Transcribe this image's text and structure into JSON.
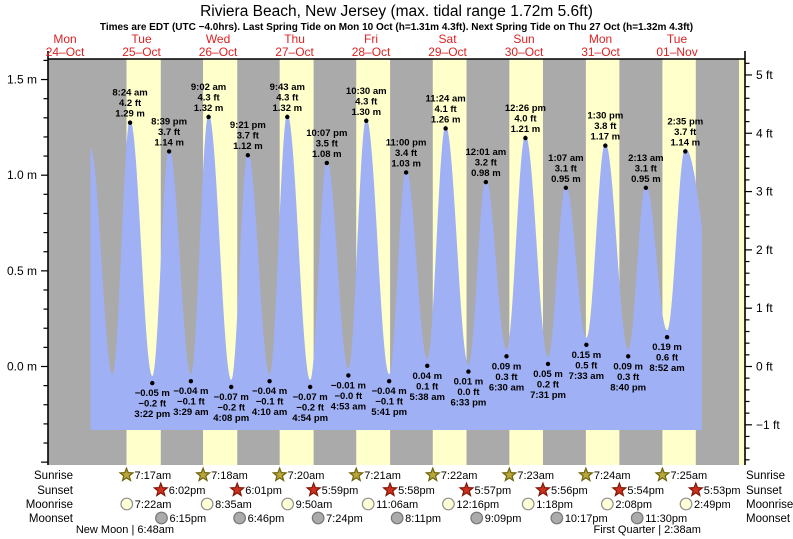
{
  "header": {
    "title": "Riviera Beach, New Jersey (max. tidal range 1.72m 5.6ft)",
    "subtitle": "Times are EDT (UTC −4.0hrs). Last Spring Tide on Mon 10 Oct (h=1.31m 4.3ft). Next Spring Tide on Thu 27 Oct (h=1.32m 4.3ft)"
  },
  "colors": {
    "background": "#ffffff",
    "night_band": "#aaaaaa",
    "daylight_band": "#ffffcc",
    "tide_fill": "#9fb0f5",
    "axis": "#000000",
    "date_red": "#dd2222",
    "annotation": "#000000",
    "sunrise_star": "#b9a73b",
    "sunrise_star_border": "#6f650f",
    "sunset_star": "#d03020",
    "sunset_star_border": "#801808",
    "moonrise_circle": "#ffffd8",
    "moonrise_circle_border": "#909090",
    "moonset_circle": "#ababab",
    "moonset_circle_border": "#777777"
  },
  "chart_data": {
    "type": "area",
    "title": "Riviera Beach, New Jersey tide curve",
    "ylabel_left": "m",
    "ylabel_right": "ft",
    "ylim_m": [
      -0.52,
      1.6
    ],
    "grid": false,
    "days": [
      {
        "day": "Mon",
        "date": "24–Oct"
      },
      {
        "day": "Tue",
        "date": "25–Oct"
      },
      {
        "day": "Wed",
        "date": "26–Oct"
      },
      {
        "day": "Thu",
        "date": "27–Oct"
      },
      {
        "day": "Fri",
        "date": "28–Oct"
      },
      {
        "day": "Sat",
        "date": "29–Oct"
      },
      {
        "day": "Sun",
        "date": "30–Oct"
      },
      {
        "day": "Mon",
        "date": "31–Oct"
      },
      {
        "day": "Tue",
        "date": "01–Nov"
      }
    ],
    "left_ticks": [
      {
        "label": "1.5 m",
        "v": 1.5
      },
      {
        "label": "1.0 m",
        "v": 1.0
      },
      {
        "label": "0.5 m",
        "v": 0.5
      },
      {
        "label": "0.0 m",
        "v": 0.0
      }
    ],
    "right_ticks": [
      {
        "label": "5 ft",
        "v": 5
      },
      {
        "label": "4 ft",
        "v": 4
      },
      {
        "label": "3 ft",
        "v": 3
      },
      {
        "label": "2 ft",
        "v": 2
      },
      {
        "label": "1 ft",
        "v": 1
      },
      {
        "label": "0 ft",
        "v": 0
      },
      {
        "label": "−1 ft",
        "v": -1
      }
    ],
    "high_tides": [
      {
        "time": "8:24 am",
        "ft": "4.2 ft",
        "m": "1.29 m",
        "h": 1.29,
        "t": 32.4
      },
      {
        "time": "8:39 pm",
        "ft": "3.7 ft",
        "m": "1.14 m",
        "h": 1.14,
        "t": 44.65
      },
      {
        "time": "9:02 am",
        "ft": "4.3 ft",
        "m": "1.32 m",
        "h": 1.32,
        "t": 57.03
      },
      {
        "time": "9:21 pm",
        "ft": "3.7 ft",
        "m": "1.12 m",
        "h": 1.12,
        "t": 69.35
      },
      {
        "time": "9:43 am",
        "ft": "4.3 ft",
        "m": "1.32 m",
        "h": 1.32,
        "t": 81.72
      },
      {
        "time": "10:07 pm",
        "ft": "3.5 ft",
        "m": "1.08 m",
        "h": 1.08,
        "t": 94.12
      },
      {
        "time": "10:30 am",
        "ft": "4.3 ft",
        "m": "1.30 m",
        "h": 1.3,
        "t": 106.5
      },
      {
        "time": "11:00 pm",
        "ft": "3.4 ft",
        "m": "1.03 m",
        "h": 1.03,
        "t": 119.0
      },
      {
        "time": "11:24 am",
        "ft": "4.1 ft",
        "m": "1.26 m",
        "h": 1.26,
        "t": 131.4
      },
      {
        "time": "12:01 am",
        "ft": "3.2 ft",
        "m": "0.98 m",
        "h": 0.98,
        "t": 144.02
      },
      {
        "time": "12:26 pm",
        "ft": "4.0 ft",
        "m": "1.21 m",
        "h": 1.21,
        "t": 156.43
      },
      {
        "time": "1:07 am",
        "ft": "3.1 ft",
        "m": "0.95 m",
        "h": 0.95,
        "t": 169.12
      },
      {
        "time": "1:30 pm",
        "ft": "3.8 ft",
        "m": "1.17 m",
        "h": 1.17,
        "t": 181.5
      },
      {
        "time": "2:13 am",
        "ft": "3.1 ft",
        "m": "0.95 m",
        "h": 0.95,
        "t": 194.22
      },
      {
        "time": "2:35 pm",
        "ft": "3.7 ft",
        "m": "1.14 m",
        "h": 1.14,
        "t": 206.58
      }
    ],
    "low_tides": [
      {
        "m": "−0.05 m",
        "ft": "−0.2 ft",
        "time": "3:22 pm",
        "h": -0.05,
        "t": 39.37
      },
      {
        "m": "−0.04 m",
        "ft": "−0.1 ft",
        "time": "3:29 am",
        "h": -0.04,
        "t": 51.48
      },
      {
        "m": "−0.07 m",
        "ft": "−0.2 ft",
        "time": "4:08 pm",
        "h": -0.07,
        "t": 64.13
      },
      {
        "m": "−0.04 m",
        "ft": "−0.1 ft",
        "time": "4:10 am",
        "h": -0.04,
        "t": 76.17
      },
      {
        "m": "−0.07 m",
        "ft": "−0.2 ft",
        "time": "4:54 pm",
        "h": -0.07,
        "t": 88.9
      },
      {
        "m": "−0.01 m",
        "ft": "−0.0 ft",
        "time": "4:53 am",
        "h": -0.01,
        "t": 100.88
      },
      {
        "m": "−0.04 m",
        "ft": "−0.1 ft",
        "time": "5:41 pm",
        "h": -0.04,
        "t": 113.68
      },
      {
        "m": "0.04 m",
        "ft": "0.1 ft",
        "time": "5:38 am",
        "h": 0.04,
        "t": 125.63
      },
      {
        "m": "0.01 m",
        "ft": "0.0 ft",
        "time": "6:33 pm",
        "h": 0.01,
        "t": 138.55
      },
      {
        "m": "0.09 m",
        "ft": "0.3 ft",
        "time": "6:30 am",
        "h": 0.09,
        "t": 150.5
      },
      {
        "m": "0.05 m",
        "ft": "0.2 ft",
        "time": "7:31 pm",
        "h": 0.05,
        "t": 163.52
      },
      {
        "m": "0.15 m",
        "ft": "0.5 ft",
        "time": "7:33 am",
        "h": 0.15,
        "t": 175.55
      },
      {
        "m": "0.09 m",
        "ft": "0.3 ft",
        "time": "8:40 pm",
        "h": 0.09,
        "t": 188.67
      },
      {
        "m": "0.19 m",
        "ft": "0.6 ft",
        "time": "8:52 am",
        "h": 0.19,
        "t": 200.87
      }
    ],
    "unlabeled_extremes": [
      {
        "t": 19.97,
        "h": 1.14
      },
      {
        "t": 26.9,
        "h": -0.04
      },
      {
        "t": 218.9,
        "h": 0.05
      }
    ],
    "astro": {
      "sunrise": {
        "label_left": "Sunrise",
        "label_right": "Sunrise",
        "events": [
          {
            "time": "7:17am",
            "t": 31.283
          },
          {
            "time": "7:18am",
            "t": 55.3
          },
          {
            "time": "7:20am",
            "t": 79.333
          },
          {
            "time": "7:21am",
            "t": 103.35
          },
          {
            "time": "7:22am",
            "t": 127.367
          },
          {
            "time": "7:23am",
            "t": 151.383
          },
          {
            "time": "7:24am",
            "t": 175.4
          },
          {
            "time": "7:25am",
            "t": 199.417
          }
        ]
      },
      "sunset": {
        "label_left": "Sunset",
        "label_right": "Sunset",
        "events": [
          {
            "time": "6:02pm",
            "t": 42.033
          },
          {
            "time": "6:01pm",
            "t": 66.017
          },
          {
            "time": "5:59pm",
            "t": 89.983
          },
          {
            "time": "5:58pm",
            "t": 113.967
          },
          {
            "time": "5:57pm",
            "t": 137.95
          },
          {
            "time": "5:56pm",
            "t": 161.933
          },
          {
            "time": "5:54pm",
            "t": 185.9
          },
          {
            "time": "5:53pm",
            "t": 209.883
          }
        ]
      },
      "moonrise": {
        "label_left": "Moonrise",
        "label_right": "Moonrise",
        "events": [
          {
            "time": "7:22am",
            "t": 31.367
          },
          {
            "time": "8:35am",
            "t": 56.583
          },
          {
            "time": "9:50am",
            "t": 81.833
          },
          {
            "time": "11:06am",
            "t": 107.1
          },
          {
            "time": "12:16pm",
            "t": 132.267
          },
          {
            "time": "1:18pm",
            "t": 157.3
          },
          {
            "time": "2:08pm",
            "t": 182.133
          },
          {
            "time": "2:49pm",
            "t": 206.817
          }
        ]
      },
      "moonset": {
        "label_left": "Moonset",
        "label_right": "Moonset",
        "events": [
          {
            "time": "6:15pm",
            "t": 42.25
          },
          {
            "time": "6:46pm",
            "t": 66.767
          },
          {
            "time": "7:24pm",
            "t": 91.4
          },
          {
            "time": "8:11pm",
            "t": 116.183
          },
          {
            "time": "9:09pm",
            "t": 141.15
          },
          {
            "time": "10:17pm",
            "t": 166.283
          },
          {
            "time": "11:30pm",
            "t": 191.5
          }
        ]
      }
    },
    "moon_phases": [
      {
        "label": "New Moon | 6:48am",
        "t": 30.8
      },
      {
        "label": "First Quarter | 2:38am",
        "t": 194.63
      }
    ],
    "extra_daylight_band_start_t": 223.433
  }
}
